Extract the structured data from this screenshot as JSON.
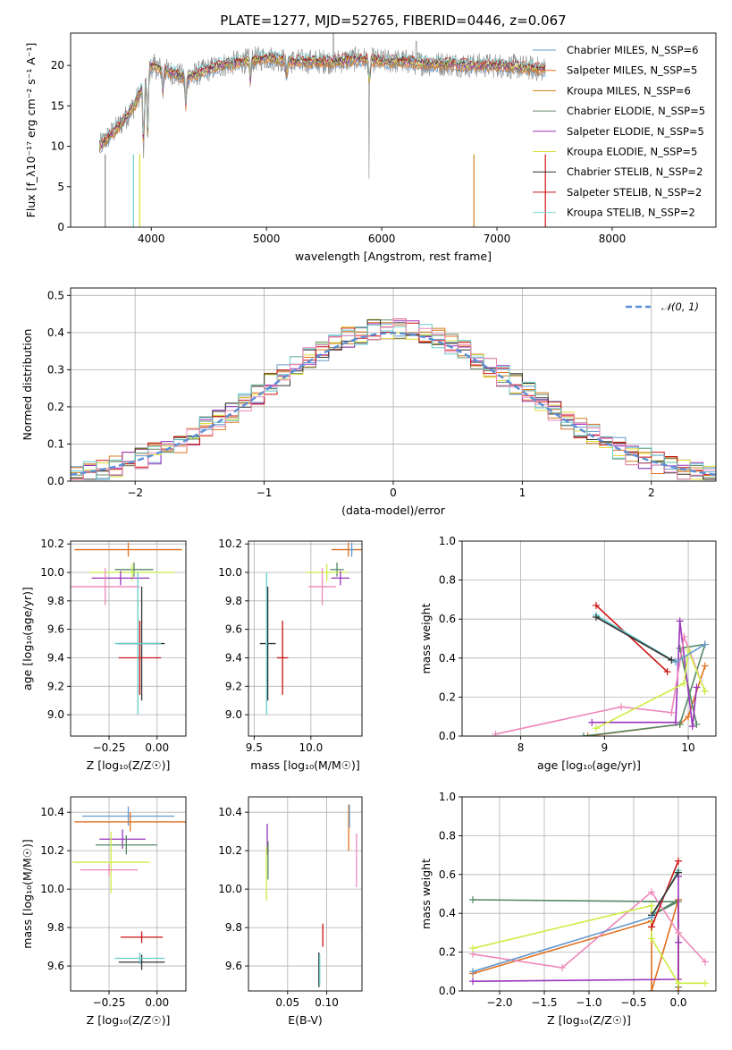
{
  "figure": {
    "title": "PLATE=1277, MJD=52765, FIBERID=0446, z=0.067"
  },
  "colors": [
    "#6699cc",
    "#e07020",
    "#d08020",
    "#6a8a6a",
    "#9933bb",
    "#dddd33",
    "#333333",
    "#cc1111",
    "#66cccc",
    "#ee88bb",
    "#ccee44",
    "#558866"
  ],
  "chart_data": [
    {
      "id": "spectrum",
      "type": "line",
      "xlabel": "wavelength [Angstrom, rest frame]",
      "ylabel": "Flux [f_λ10⁻¹⁷ erg cm⁻² s⁻¹ A⁻¹]",
      "xlim": [
        3300,
        8900
      ],
      "ylim": [
        0,
        24
      ],
      "xticks": [
        4000,
        5000,
        6000,
        7000,
        8000
      ],
      "yticks": [
        0,
        5,
        10,
        15,
        20
      ],
      "grid": false,
      "legend_position": "top-right",
      "legend": [
        {
          "name": "Chabrier MILES, N_SSP=6",
          "color": "#6699cc"
        },
        {
          "name": "Salpeter MILES, N_SSP=5",
          "color": "#e07020"
        },
        {
          "name": "Kroupa MILES, N_SSP=6",
          "color": "#d08020"
        },
        {
          "name": "Chabrier ELODIE, N_SSP=5",
          "color": "#6a8a6a"
        },
        {
          "name": "Salpeter ELODIE, N_SSP=5",
          "color": "#9933bb"
        },
        {
          "name": "Kroupa ELODIE, N_SSP=5",
          "color": "#dddd33"
        },
        {
          "name": "Chabrier STELIB, N_SSP=2",
          "color": "#333333"
        },
        {
          "name": "Salpeter STELIB, N_SSP=2",
          "color": "#cc1111"
        },
        {
          "name": "Kroupa STELIB, N_SSP=2",
          "color": "#88dddd"
        }
      ],
      "continuum": {
        "x": [
          3550,
          3650,
          3750,
          3850,
          3950,
          4000,
          4100,
          4200,
          4300,
          4400,
          4500,
          4600,
          4800,
          5000,
          5200,
          5400,
          5600,
          5800,
          6000,
          6200,
          6400,
          6600,
          6800,
          7000,
          7200,
          7400
        ],
        "y": [
          10,
          11.5,
          13,
          15,
          18,
          20,
          19.5,
          19,
          18.5,
          19,
          19.5,
          20,
          20.5,
          21,
          20.5,
          20.5,
          20.5,
          20.8,
          20.5,
          20.5,
          20.2,
          20.2,
          20,
          20,
          19.8,
          19.5
        ]
      }
    },
    {
      "id": "residuals",
      "type": "line",
      "xlabel": "(data-model)/error",
      "ylabel": "Normed distribution",
      "xlim": [
        -2.5,
        2.5
      ],
      "ylim": [
        0,
        0.52
      ],
      "xticks": [
        -2,
        -1,
        0,
        1,
        2
      ],
      "xticklabels": [
        "−2",
        "−1",
        "0",
        "1",
        "2"
      ],
      "yticks": [
        0.0,
        0.1,
        0.2,
        0.3,
        0.4,
        0.5
      ],
      "yticklabels": [
        "0.0",
        "0.1",
        "0.2",
        "0.3",
        "0.4",
        "0.5"
      ],
      "grid": true,
      "legend_position": "top-right",
      "legend": [
        {
          "name": "𝒩(0, 1)",
          "color": "#5b8fd6",
          "style": "dashed"
        }
      ],
      "bin_width": 0.1
    },
    {
      "id": "age-vs-Z",
      "type": "scatter",
      "xlabel": "Z [log₁₀(Z/Z☉)]",
      "ylabel": "age  [log₁₀(age/yr)]",
      "xlim": [
        -0.45,
        0.15
      ],
      "ylim": [
        8.85,
        10.22
      ],
      "xticks": [
        -0.25,
        0.0
      ],
      "xticklabels": [
        "−0.25",
        "0.00"
      ],
      "yticks": [
        9.0,
        9.2,
        9.4,
        9.6,
        9.8,
        10.0,
        10.2
      ],
      "yticklabels": [
        "9.0",
        "9.2",
        "9.4",
        "9.6",
        "9.8",
        "10.0",
        "10.2"
      ],
      "grid": true,
      "points": [
        {
          "x": -0.15,
          "y": 10.16,
          "xerr": 0.28,
          "yerr": 0.05,
          "color": "#e07020"
        },
        {
          "x": -0.12,
          "y": 10.02,
          "xerr": 0.1,
          "yerr": 0.05,
          "color": "#558866"
        },
        {
          "x": -0.13,
          "y": 10.0,
          "xerr": 0.22,
          "yerr": 0.06,
          "color": "#ccee44"
        },
        {
          "x": -0.19,
          "y": 9.96,
          "xerr": 0.15,
          "yerr": 0.05,
          "color": "#9933bb"
        },
        {
          "x": -0.27,
          "y": 9.9,
          "xerr": 0.18,
          "yerr": 0.13,
          "color": "#ee88bb"
        },
        {
          "x": -0.08,
          "y": 9.5,
          "xerr": 0.12,
          "yerr": 0.4,
          "color": "#333333"
        },
        {
          "x": -0.09,
          "y": 9.4,
          "xerr": 0.11,
          "yerr": 0.26,
          "color": "#cc1111"
        },
        {
          "x": -0.1,
          "y": 9.5,
          "xerr": 0.12,
          "yerr": 0.5,
          "color": "#66cccc"
        }
      ]
    },
    {
      "id": "age-vs-mass",
      "type": "scatter",
      "xlabel": "mass [log₁₀(M/M☉)]",
      "ylabel": "",
      "xlim": [
        9.45,
        10.45
      ],
      "ylim": [
        8.85,
        10.22
      ],
      "xticks": [
        9.5,
        10.0
      ],
      "xticklabels": [
        "9.5",
        "10.0"
      ],
      "yticks": [
        9.0,
        9.2,
        9.4,
        9.6,
        9.8,
        10.0,
        10.2
      ],
      "yticklabels": [
        "9.0",
        "9.2",
        "9.4",
        "9.6",
        "9.8",
        "10.0",
        "10.2"
      ],
      "grid": true,
      "points": [
        {
          "x": 10.33,
          "y": 10.16,
          "xerr": 0.15,
          "yerr": 0.05,
          "color": "#e07020"
        },
        {
          "x": 10.36,
          "y": 10.16,
          "xerr": 0.02,
          "yerr": 0.05,
          "color": "#6699cc"
        },
        {
          "x": 10.23,
          "y": 10.02,
          "xerr": 0.06,
          "yerr": 0.05,
          "color": "#558866"
        },
        {
          "x": 10.14,
          "y": 10.0,
          "xerr": 0.18,
          "yerr": 0.06,
          "color": "#ccee44"
        },
        {
          "x": 10.26,
          "y": 9.96,
          "xerr": 0.08,
          "yerr": 0.05,
          "color": "#9933bb"
        },
        {
          "x": 10.1,
          "y": 9.9,
          "xerr": 0.12,
          "yerr": 0.13,
          "color": "#ee88bb"
        },
        {
          "x": 9.62,
          "y": 9.5,
          "xerr": 0.07,
          "yerr": 0.4,
          "color": "#333333"
        },
        {
          "x": 9.75,
          "y": 9.4,
          "xerr": 0.05,
          "yerr": 0.26,
          "color": "#cc1111"
        },
        {
          "x": 9.61,
          "y": 9.5,
          "xerr": 0.01,
          "yerr": 0.5,
          "color": "#66cccc"
        }
      ]
    },
    {
      "id": "weight-vs-age",
      "type": "line",
      "xlabel": "age  [log₁₀(age/yr)]",
      "ylabel": "mass weight",
      "xlim": [
        7.3,
        10.33
      ],
      "ylim": [
        0,
        1.0
      ],
      "xticks": [
        8,
        9,
        10
      ],
      "yticks": [
        0.0,
        0.2,
        0.4,
        0.6,
        0.8,
        1.0
      ],
      "yticklabels": [
        "0.0",
        "0.2",
        "0.4",
        "0.6",
        "0.8",
        "1.0"
      ],
      "grid": true,
      "series": [
        {
          "color": "#e07020",
          "x": [
            8.8,
            9.9,
            10.0,
            10.2
          ],
          "y": [
            0.0,
            0.06,
            0.1,
            0.36
          ]
        },
        {
          "color": "#558866",
          "x": [
            8.75,
            9.9,
            10.2,
            9.9,
            10.1
          ],
          "y": [
            0.0,
            0.06,
            0.47,
            0.45,
            0.06
          ]
        },
        {
          "color": "#9933bb",
          "x": [
            8.85,
            9.85,
            9.9,
            10.05,
            10.1
          ],
          "y": [
            0.07,
            0.07,
            0.59,
            0.05,
            0.25
          ]
        },
        {
          "color": "#ee88bb",
          "x": [
            7.7,
            9.2,
            9.8,
            9.95,
            10.2
          ],
          "y": [
            0.01,
            0.15,
            0.12,
            0.51,
            0.23
          ]
        },
        {
          "color": "#ccee44",
          "x": [
            8.9,
            9.95,
            10.0,
            10.2
          ],
          "y": [
            0.04,
            0.27,
            0.44,
            0.23
          ]
        },
        {
          "color": "#cc1111",
          "x": [
            8.9,
            9.75
          ],
          "y": [
            0.67,
            0.33
          ]
        },
        {
          "color": "#66cccc",
          "x": [
            8.9,
            9.85
          ],
          "y": [
            0.62,
            0.38
          ]
        },
        {
          "color": "#333333",
          "x": [
            8.9,
            9.8
          ],
          "y": [
            0.61,
            0.39
          ]
        },
        {
          "color": "#6699cc",
          "x": [
            9.85,
            10.2
          ],
          "y": [
            0.38,
            0.47
          ]
        }
      ]
    },
    {
      "id": "mass-vs-Z",
      "type": "scatter",
      "xlabel": "Z [log₁₀(Z/Z☉)]",
      "ylabel": "mass [log₁₀(M/M☉)]",
      "xlim": [
        -0.45,
        0.15
      ],
      "ylim": [
        9.47,
        10.48
      ],
      "xticks": [
        -0.25,
        0.0
      ],
      "xticklabels": [
        "−0.25",
        "0.00"
      ],
      "yticks": [
        9.6,
        9.8,
        10.0,
        10.2,
        10.4
      ],
      "yticklabels": [
        "9.6",
        "9.8",
        "10.0",
        "10.2",
        "10.4"
      ],
      "grid": true,
      "points": [
        {
          "x": -0.15,
          "y": 10.38,
          "xerr": 0.24,
          "yerr": 0.05,
          "color": "#6699cc"
        },
        {
          "x": -0.14,
          "y": 10.35,
          "xerr": 0.29,
          "yerr": 0.05,
          "color": "#e07020"
        },
        {
          "x": -0.18,
          "y": 10.26,
          "xerr": 0.12,
          "yerr": 0.05,
          "color": "#9933bb"
        },
        {
          "x": -0.16,
          "y": 10.23,
          "xerr": 0.16,
          "yerr": 0.05,
          "color": "#558866"
        },
        {
          "x": -0.24,
          "y": 10.14,
          "xerr": 0.2,
          "yerr": 0.16,
          "color": "#ccee44"
        },
        {
          "x": -0.25,
          "y": 10.1,
          "xerr": 0.15,
          "yerr": 0.03,
          "color": "#ee88bb"
        },
        {
          "x": -0.08,
          "y": 9.75,
          "xerr": 0.11,
          "yerr": 0.03,
          "color": "#cc1111"
        },
        {
          "x": -0.08,
          "y": 9.62,
          "xerr": 0.12,
          "yerr": 0.04,
          "color": "#333333"
        },
        {
          "x": -0.09,
          "y": 9.64,
          "xerr": 0.13,
          "yerr": 0.03,
          "color": "#66cccc"
        }
      ]
    },
    {
      "id": "mass-vs-ebv",
      "type": "scatter",
      "xlabel": "E(B-V)",
      "ylabel": "",
      "xlim": [
        0.0,
        0.145
      ],
      "ylim": [
        9.47,
        10.48
      ],
      "xticks": [
        0.05,
        0.1
      ],
      "xticklabels": [
        "0.05",
        "0.10"
      ],
      "yticks": [
        9.6,
        9.8,
        10.0,
        10.2,
        10.4
      ],
      "yticklabels": [
        "9.6",
        "9.8",
        "10.0",
        "10.2",
        "10.4"
      ],
      "grid": true,
      "points": [
        {
          "x": 0.128,
          "y": 10.32,
          "xerr": 0.0,
          "yerr": 0.12,
          "color": "#e07020"
        },
        {
          "x": 0.129,
          "y": 10.38,
          "xerr": 0.0,
          "yerr": 0.06,
          "color": "#6699cc"
        },
        {
          "x": 0.138,
          "y": 10.15,
          "xerr": 0.0,
          "yerr": 0.14,
          "color": "#ee88bb"
        },
        {
          "x": 0.024,
          "y": 10.26,
          "xerr": 0.0,
          "yerr": 0.08,
          "color": "#9933bb"
        },
        {
          "x": 0.025,
          "y": 10.15,
          "xerr": 0.0,
          "yerr": 0.1,
          "color": "#558866"
        },
        {
          "x": 0.023,
          "y": 10.08,
          "xerr": 0.0,
          "yerr": 0.14,
          "color": "#ccee44"
        },
        {
          "x": 0.095,
          "y": 9.76,
          "xerr": 0.0,
          "yerr": 0.06,
          "color": "#cc1111"
        },
        {
          "x": 0.09,
          "y": 9.58,
          "xerr": 0.0,
          "yerr": 0.09,
          "color": "#333333"
        },
        {
          "x": 0.091,
          "y": 9.58,
          "xerr": 0.0,
          "yerr": 0.08,
          "color": "#66cccc"
        }
      ]
    },
    {
      "id": "weight-vs-Z",
      "type": "line",
      "xlabel": "Z [log₁₀(Z/Z☉)]",
      "ylabel": "mass weight",
      "xlim": [
        -2.42,
        0.42
      ],
      "ylim": [
        0,
        1.0
      ],
      "xticks": [
        -2.0,
        -1.5,
        -1.0,
        -0.5,
        0.0
      ],
      "xticklabels": [
        "−2.0",
        "−1.5",
        "−1.0",
        "−0.5",
        "0.0"
      ],
      "yticks": [
        0.0,
        0.2,
        0.4,
        0.6,
        0.8,
        1.0
      ],
      "yticklabels": [
        "0.0",
        "0.2",
        "0.4",
        "0.6",
        "0.8",
        "1.0"
      ],
      "grid": true,
      "series": [
        {
          "color": "#558866",
          "x": [
            -2.3,
            0.0,
            -0.3,
            0.0,
            0.0
          ],
          "y": [
            0.47,
            0.46,
            0.39,
            0.47,
            0.02
          ]
        },
        {
          "color": "#e07020",
          "x": [
            -2.3,
            -0.3,
            -0.3,
            0.0,
            0.0
          ],
          "y": [
            0.09,
            0.36,
            0.0,
            0.47,
            0.0
          ]
        },
        {
          "color": "#9933bb",
          "x": [
            -2.3,
            0.0,
            0.0,
            0.0
          ],
          "y": [
            0.05,
            0.06,
            0.59,
            0.25
          ]
        },
        {
          "color": "#ee88bb",
          "x": [
            -2.3,
            -1.3,
            -0.3,
            0.0,
            0.3
          ],
          "y": [
            0.19,
            0.12,
            0.51,
            0.3,
            0.15
          ]
        },
        {
          "color": "#ccee44",
          "x": [
            -2.3,
            -0.3,
            -0.3,
            0.0,
            0.3
          ],
          "y": [
            0.22,
            0.44,
            0.27,
            0.04,
            0.04
          ]
        },
        {
          "color": "#cc1111",
          "x": [
            -0.3,
            0.0
          ],
          "y": [
            0.33,
            0.67
          ]
        },
        {
          "color": "#66cccc",
          "x": [
            -0.3,
            0.0
          ],
          "y": [
            0.38,
            0.62
          ]
        },
        {
          "color": "#333333",
          "x": [
            -0.3,
            0.0
          ],
          "y": [
            0.39,
            0.61
          ]
        },
        {
          "color": "#6699cc",
          "x": [
            -2.3,
            -0.3
          ],
          "y": [
            0.1,
            0.38
          ]
        }
      ]
    }
  ]
}
